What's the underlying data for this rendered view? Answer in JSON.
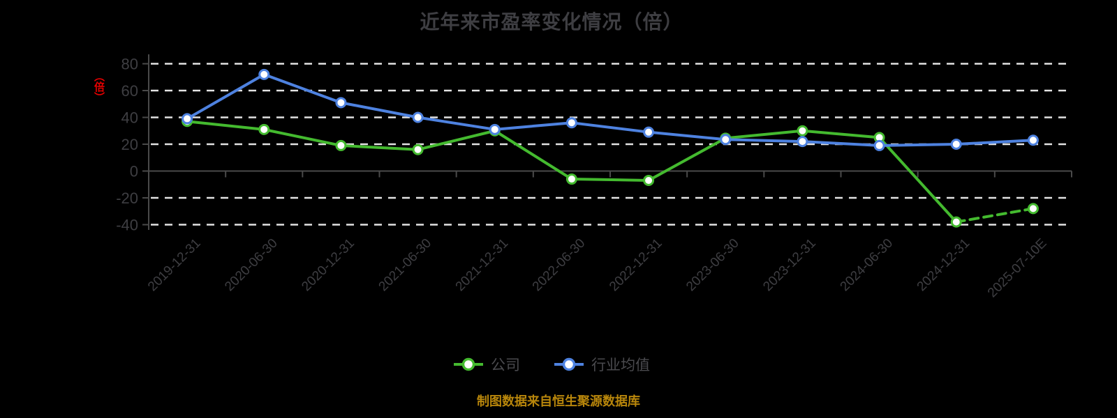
{
  "title": "近年来市盈率变化情况（倍）",
  "y_axis_name": "（倍）",
  "y_axis_name_color": "#E60000",
  "footer": {
    "text": "制图数据来自恒生聚源数据库",
    "color": "#B8860B"
  },
  "legend": {
    "items": [
      {
        "label": "公司",
        "color": "#44BA2F"
      },
      {
        "label": "行业均值",
        "color": "#4E82E0"
      }
    ]
  },
  "chart_data": {
    "type": "line",
    "title": "近年来市盈率变化情况（倍）",
    "xlabel": "",
    "ylabel": "（倍）",
    "categories": [
      "2019-12-31",
      "2020-06-30",
      "2020-12-31",
      "2021-06-30",
      "2021-12-31",
      "2022-06-30",
      "2022-12-31",
      "2023-06-30",
      "2023-12-31",
      "2024-06-30",
      "2024-12-31",
      "2025-07-10E"
    ],
    "series": [
      {
        "name": "公司",
        "color": "#44BA2F",
        "last_segment_dashed": true,
        "values": [
          37,
          31,
          19,
          16,
          30,
          -6,
          -7,
          24.5,
          30,
          25,
          -38,
          -28
        ]
      },
      {
        "name": "行业均值",
        "color": "#4E82E0",
        "last_segment_dashed": false,
        "values": [
          39,
          72,
          51,
          40,
          31,
          36,
          29,
          23.5,
          22,
          19,
          20,
          23
        ]
      }
    ],
    "y_ticks": [
      80,
      60,
      40,
      20,
      0,
      -20,
      -40
    ],
    "ylim": [
      -44,
      88
    ],
    "grid": "horizontal dashed white lines; solid axis line at zero with boundary ticks",
    "legend_position": "bottom",
    "marker": "circle, white fill, colored ring",
    "colors": {
      "background": "#000000",
      "title_text": "#3E3E42",
      "axis_label_text": "#3E3E42",
      "axis_line": "#4A4A4A",
      "gridline": "#E3E3E3"
    }
  }
}
